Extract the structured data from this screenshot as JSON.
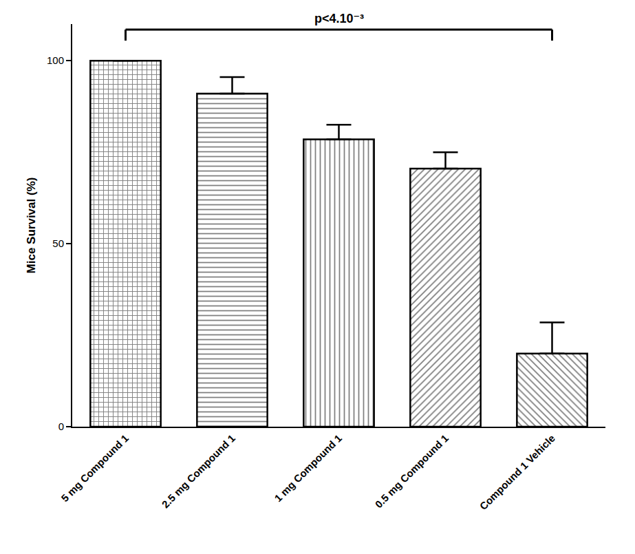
{
  "chart_data": {
    "type": "bar",
    "categories": [
      "5 mg Compound 1",
      "2.5 mg Compound 1",
      "1 mg Compound 1",
      "0.5 mg Compound 1",
      "Compound 1 Vehicle"
    ],
    "values": [
      100,
      91,
      78.5,
      70.5,
      20
    ],
    "errors": [
      0,
      4.5,
      4,
      4.5,
      8.5
    ],
    "color": "#000000",
    "y_label": "Mice Survival (%)",
    "ylim": [
      0,
      110
    ],
    "yticks": [
      0,
      50,
      100
    ],
    "grid": false,
    "annotations": [
      {
        "text": "p<4.10⁻³",
        "from": "5 mg Compound 1",
        "to": "Compound 1 Vehicle",
        "y": 108.5
      }
    ]
  }
}
